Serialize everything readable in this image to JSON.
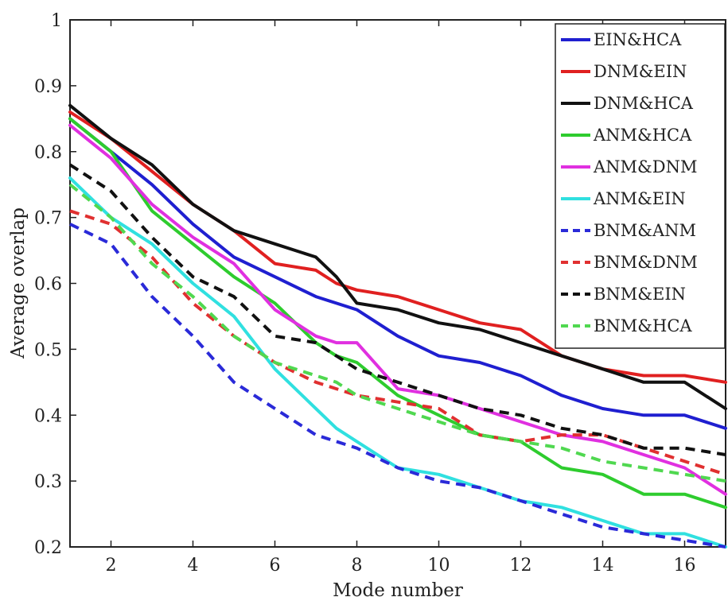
{
  "chart_data": {
    "type": "line",
    "title": "",
    "xlabel": "Mode number",
    "ylabel": "Average overlap",
    "xlim": [
      1,
      17
    ],
    "ylim": [
      0.2,
      1.0
    ],
    "x_ticks": [
      2,
      4,
      6,
      8,
      10,
      12,
      14,
      16
    ],
    "y_ticks": [
      0.2,
      0.3,
      0.4,
      0.5,
      0.6,
      0.7,
      0.8,
      0.9,
      1
    ],
    "y_tick_labels": [
      "0.2",
      "0.3",
      "0.4",
      "0.5",
      "0.6",
      "0.7",
      "0.8",
      "0.9",
      "1"
    ],
    "grid": false,
    "legend_position": "top-right",
    "x": [
      1,
      2,
      3,
      4,
      5,
      6,
      7,
      7.5,
      8,
      9,
      10,
      11,
      12,
      13,
      14,
      15,
      16,
      17
    ],
    "series": [
      {
        "name": "EIN&HCA",
        "color": "#1f1fd0",
        "dash": "solid",
        "values": [
          0.85,
          0.8,
          0.75,
          0.69,
          0.64,
          0.61,
          0.58,
          0.57,
          0.56,
          0.52,
          0.49,
          0.48,
          0.46,
          0.43,
          0.41,
          0.4,
          0.4,
          0.38
        ]
      },
      {
        "name": "DNM&EIN",
        "color": "#e02020",
        "dash": "solid",
        "values": [
          0.86,
          0.82,
          0.77,
          0.72,
          0.68,
          0.63,
          0.62,
          0.6,
          0.59,
          0.58,
          0.56,
          0.54,
          0.53,
          0.49,
          0.47,
          0.46,
          0.46,
          0.45
        ]
      },
      {
        "name": "DNM&HCA",
        "color": "#111111",
        "dash": "solid",
        "values": [
          0.87,
          0.82,
          0.78,
          0.72,
          0.68,
          0.66,
          0.64,
          0.61,
          0.57,
          0.56,
          0.54,
          0.53,
          0.51,
          0.49,
          0.47,
          0.45,
          0.45,
          0.41
        ]
      },
      {
        "name": "ANM&HCA",
        "color": "#2ecc2e",
        "dash": "solid",
        "values": [
          0.85,
          0.8,
          0.71,
          0.66,
          0.61,
          0.57,
          0.51,
          0.49,
          0.48,
          0.43,
          0.4,
          0.37,
          0.36,
          0.32,
          0.31,
          0.28,
          0.28,
          0.26
        ]
      },
      {
        "name": "ANM&DNM",
        "color": "#e030e0",
        "dash": "solid",
        "values": [
          0.84,
          0.79,
          0.72,
          0.67,
          0.63,
          0.56,
          0.52,
          0.51,
          0.51,
          0.44,
          0.43,
          0.41,
          0.39,
          0.37,
          0.36,
          0.34,
          0.32,
          0.28
        ]
      },
      {
        "name": "ANM&EIN",
        "color": "#30e0e0",
        "dash": "solid",
        "values": [
          0.76,
          0.7,
          0.66,
          0.6,
          0.55,
          0.47,
          0.41,
          0.38,
          0.36,
          0.32,
          0.31,
          0.29,
          0.27,
          0.26,
          0.24,
          0.22,
          0.22,
          0.2
        ]
      },
      {
        "name": "BNM&ANM",
        "color": "#2a2ad8",
        "dash": "dashed",
        "values": [
          0.69,
          0.66,
          0.58,
          0.52,
          0.45,
          0.41,
          0.37,
          0.36,
          0.35,
          0.32,
          0.3,
          0.29,
          0.27,
          0.25,
          0.23,
          0.22,
          0.21,
          0.2
        ]
      },
      {
        "name": "BNM&DNM",
        "color": "#e03030",
        "dash": "dashed",
        "values": [
          0.71,
          0.69,
          0.64,
          0.57,
          0.52,
          0.48,
          0.45,
          0.44,
          0.43,
          0.42,
          0.41,
          0.37,
          0.36,
          0.37,
          0.37,
          0.35,
          0.33,
          0.31
        ]
      },
      {
        "name": "BNM&EIN",
        "color": "#111111",
        "dash": "dashed",
        "values": [
          0.78,
          0.74,
          0.67,
          0.61,
          0.58,
          0.52,
          0.51,
          0.49,
          0.47,
          0.45,
          0.43,
          0.41,
          0.4,
          0.38,
          0.37,
          0.35,
          0.35,
          0.34
        ]
      },
      {
        "name": "BNM&HCA",
        "color": "#50d850",
        "dash": "dashed",
        "values": [
          0.75,
          0.7,
          0.63,
          0.58,
          0.52,
          0.48,
          0.46,
          0.45,
          0.43,
          0.41,
          0.39,
          0.37,
          0.36,
          0.35,
          0.33,
          0.32,
          0.31,
          0.3
        ]
      }
    ]
  }
}
